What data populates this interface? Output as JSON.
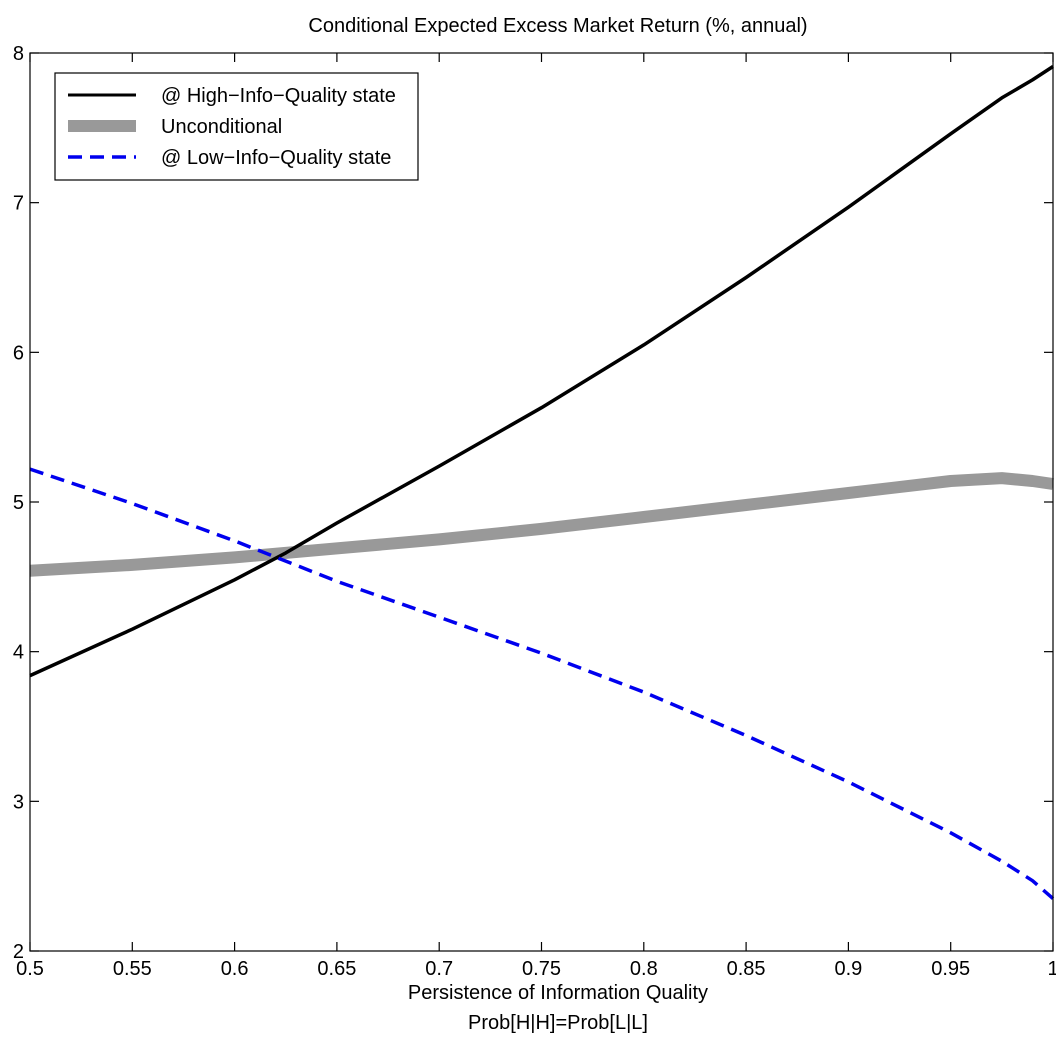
{
  "chart_data": {
    "type": "line",
    "title": "Conditional Expected Excess Market Return (%, annual)",
    "xlabel": "Persistence of Information Quality",
    "xlabel2": "Prob[H|H]=Prob[L|L]",
    "ylabel": "",
    "xlim": [
      0.5,
      1.0
    ],
    "ylim": [
      2,
      8
    ],
    "xticks": [
      0.5,
      0.55,
      0.6,
      0.65,
      0.7,
      0.75,
      0.8,
      0.85,
      0.9,
      0.95,
      1.0
    ],
    "xtick_labels": [
      "0.5",
      "0.55",
      "0.6",
      "0.65",
      "0.7",
      "0.75",
      "0.8",
      "0.85",
      "0.9",
      "0.95",
      "1"
    ],
    "yticks": [
      2,
      3,
      4,
      5,
      6,
      7,
      8
    ],
    "ytick_labels": [
      "2",
      "3",
      "4",
      "5",
      "6",
      "7",
      "8"
    ],
    "grid": false,
    "legend_position": "top-left",
    "series": [
      {
        "name": "@ High−Info−Quality state",
        "color": "#000000",
        "style": "solid",
        "x": [
          0.5,
          0.55,
          0.6,
          0.625,
          0.65,
          0.7,
          0.75,
          0.8,
          0.85,
          0.9,
          0.95,
          0.975,
          0.99,
          1.0
        ],
        "y": [
          3.84,
          4.15,
          4.48,
          4.66,
          4.86,
          5.24,
          5.63,
          6.05,
          6.5,
          6.97,
          7.46,
          7.7,
          7.82,
          7.91
        ]
      },
      {
        "name": "Unconditional",
        "color": "#999999",
        "style": "thick",
        "x": [
          0.5,
          0.55,
          0.6,
          0.65,
          0.7,
          0.75,
          0.8,
          0.85,
          0.9,
          0.95,
          0.975,
          0.99,
          1.0
        ],
        "y": [
          4.54,
          4.58,
          4.63,
          4.69,
          4.75,
          4.82,
          4.9,
          4.98,
          5.06,
          5.14,
          5.16,
          5.14,
          5.12
        ]
      },
      {
        "name": "@ Low−Info−Quality state",
        "color": "#0000ee",
        "style": "dashed",
        "x": [
          0.5,
          0.55,
          0.6,
          0.65,
          0.7,
          0.75,
          0.8,
          0.85,
          0.9,
          0.95,
          0.975,
          0.99,
          1.0
        ],
        "y": [
          5.22,
          4.99,
          4.74,
          4.47,
          4.23,
          3.99,
          3.73,
          3.44,
          3.13,
          2.79,
          2.6,
          2.47,
          2.35
        ]
      }
    ]
  }
}
